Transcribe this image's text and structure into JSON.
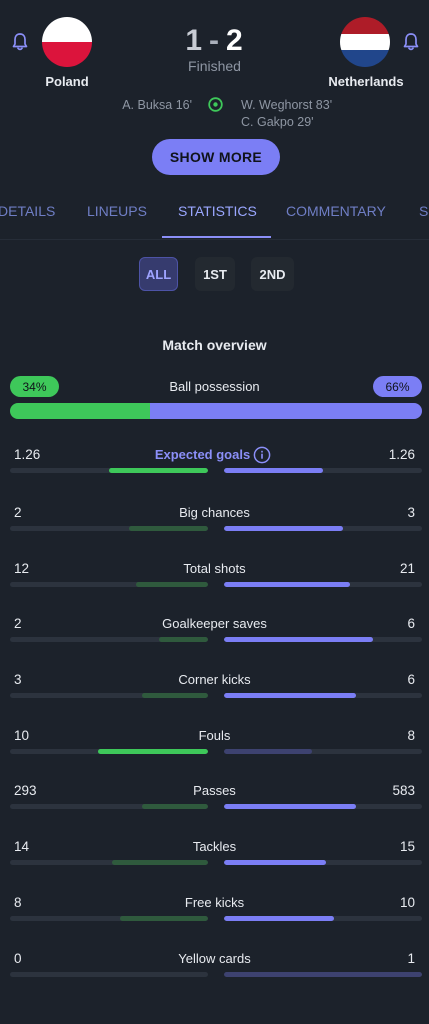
{
  "match": {
    "home": {
      "name": "Poland",
      "score": "1",
      "scorers": [
        "A. Buksa 16'"
      ]
    },
    "away": {
      "name": "Netherlands",
      "score": "2",
      "scorers": [
        "W. Weghorst 83'",
        "C. Gakpo 29'"
      ]
    },
    "separator": "-",
    "status": "Finished"
  },
  "show_more_label": "SHOW MORE",
  "tabs": [
    "DETAILS",
    "LINEUPS",
    "STATISTICS",
    "COMMENTARY",
    "S"
  ],
  "active_tab": "STATISTICS",
  "periods": [
    "ALL",
    "1ST",
    "2ND"
  ],
  "active_period": "ALL",
  "section_title": "Match overview",
  "possession": {
    "label": "Ball possession",
    "home": "34%",
    "away": "66%",
    "home_fraction": 0.34
  },
  "stats": [
    {
      "name": "Expected goals",
      "home": "1.26",
      "away": "1.26",
      "home_fill": 0.5,
      "away_fill": 0.5,
      "highlight": true,
      "info_icon": "info-circle-icon"
    },
    {
      "name": "Big chances",
      "home": "2",
      "away": "3",
      "home_fill": 0.4,
      "away_fill": 0.6
    },
    {
      "name": "Total shots",
      "home": "12",
      "away": "21",
      "home_fill": 0.364,
      "away_fill": 0.636
    },
    {
      "name": "Goalkeeper saves",
      "home": "2",
      "away": "6",
      "home_fill": 0.25,
      "away_fill": 0.75
    },
    {
      "name": "Corner kicks",
      "home": "3",
      "away": "6",
      "home_fill": 0.333,
      "away_fill": 0.667
    },
    {
      "name": "Fouls",
      "home": "10",
      "away": "8",
      "home_fill": 0.556,
      "away_fill": 0.444
    },
    {
      "name": "Passes",
      "home": "293",
      "away": "583",
      "home_fill": 0.334,
      "away_fill": 0.666
    },
    {
      "name": "Tackles",
      "home": "14",
      "away": "15",
      "home_fill": 0.483,
      "away_fill": 0.517
    },
    {
      "name": "Free kicks",
      "home": "8",
      "away": "10",
      "home_fill": 0.444,
      "away_fill": 0.556
    },
    {
      "name": "Yellow cards",
      "home": "0",
      "away": "1",
      "home_fill": 0.0,
      "away_fill": 1.0
    }
  ],
  "colors": {
    "background": "#1c222b",
    "accent": "#7b7ef5",
    "home_highlight": "#3ec85a",
    "home_muted": "#2f5a3d",
    "away": "#7b7ef5",
    "away_muted": "#3d4270",
    "track": "#2c333e"
  }
}
